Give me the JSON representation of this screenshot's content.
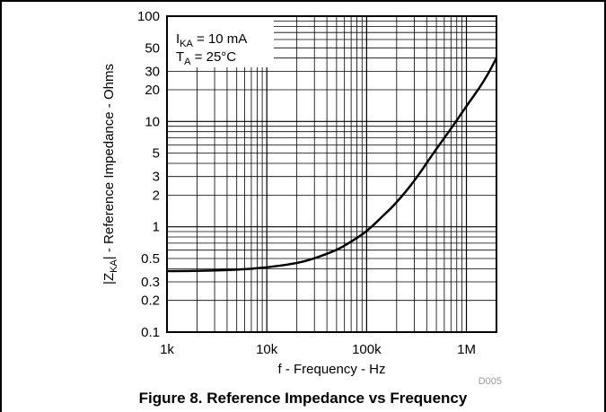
{
  "caption": "Figure 8. Reference Impedance vs Frequency",
  "figure_code": "D005",
  "chart_data": {
    "type": "line",
    "xscale": "log",
    "yscale": "log",
    "xlim": [
      1000,
      2000000
    ],
    "ylim": [
      0.1,
      100
    ],
    "xticks": [
      {
        "value": 1000,
        "label": "1k"
      },
      {
        "value": 10000,
        "label": "10k"
      },
      {
        "value": 100000,
        "label": "100k"
      },
      {
        "value": 1000000,
        "label": "1M"
      }
    ],
    "yticks": [
      {
        "value": 100,
        "label": "100"
      },
      {
        "value": 50,
        "label": "50"
      },
      {
        "value": 30,
        "label": "30"
      },
      {
        "value": 20,
        "label": "20"
      },
      {
        "value": 10,
        "label": "10"
      },
      {
        "value": 5,
        "label": "5"
      },
      {
        "value": 3,
        "label": "3"
      },
      {
        "value": 2,
        "label": "2"
      },
      {
        "value": 1,
        "label": "1"
      },
      {
        "value": 0.5,
        "label": "0.5"
      },
      {
        "value": 0.3,
        "label": "0.3"
      },
      {
        "value": 0.2,
        "label": "0.2"
      },
      {
        "value": 0.1,
        "label": "0.1"
      }
    ],
    "xlabel": "f - Frequency - Hz",
    "ylabel": "|ZKA| - Reference Impedance - Ohms",
    "grid": true,
    "annotations": [
      "IKA = 10 mA",
      "TA = 25°C"
    ],
    "series": [
      {
        "x": [
          1000,
          2000,
          5000,
          10000,
          20000,
          30000,
          50000,
          70000,
          100000,
          150000,
          200000,
          300000,
          500000,
          700000,
          1000000,
          1500000,
          2000000
        ],
        "y": [
          0.38,
          0.38,
          0.39,
          0.41,
          0.45,
          0.5,
          0.6,
          0.72,
          0.9,
          1.3,
          1.7,
          2.7,
          5.5,
          8.5,
          14,
          24,
          40
        ]
      }
    ]
  }
}
